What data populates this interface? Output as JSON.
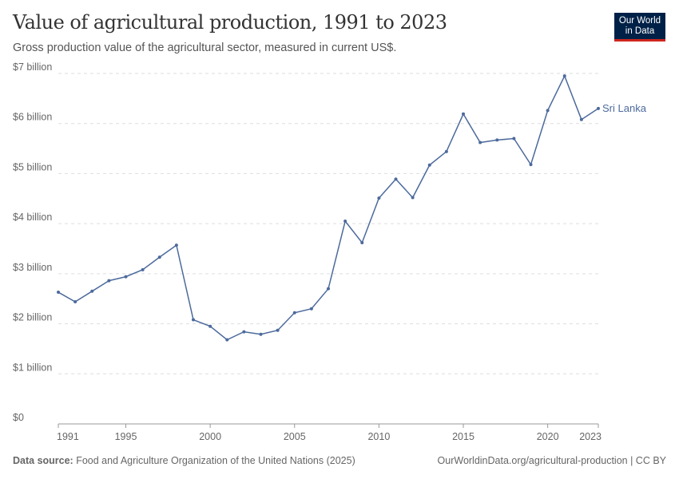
{
  "header": {
    "title": "Value of agricultural production, 1991 to 2023",
    "subtitle": "Gross production value of the agricultural sector, measured in current US$.",
    "logo": "Our World in Data"
  },
  "footer": {
    "source_label": "Data source:",
    "source": "Food and Agriculture Organization of the United Nations (2025)",
    "link": "OurWorldinData.org/agricultural-production | CC BY"
  },
  "colors": {
    "series": "#4c6a9c",
    "grid": "#dddddd"
  },
  "chart_data": {
    "type": "line",
    "title": "Value of agricultural production, 1991 to 2023",
    "x": [
      1991,
      1992,
      1993,
      1994,
      1995,
      1996,
      1997,
      1998,
      1999,
      2000,
      2001,
      2002,
      2003,
      2004,
      2005,
      2006,
      2007,
      2008,
      2009,
      2010,
      2011,
      2012,
      2013,
      2014,
      2015,
      2016,
      2017,
      2018,
      2019,
      2020,
      2021,
      2022,
      2023
    ],
    "series": [
      {
        "name": "Sri Lanka",
        "values": [
          2.63,
          2.44,
          2.65,
          2.86,
          2.94,
          3.08,
          3.33,
          3.57,
          2.08,
          1.95,
          1.68,
          1.84,
          1.79,
          1.87,
          2.22,
          2.3,
          2.7,
          4.05,
          3.62,
          4.51,
          4.89,
          4.52,
          5.17,
          5.44,
          6.19,
          5.62,
          5.67,
          5.7,
          5.18,
          6.26,
          6.95,
          6.08,
          6.3
        ]
      }
    ],
    "xlim": [
      1991,
      2023
    ],
    "ylim": [
      0,
      7
    ],
    "xticks": [
      1991,
      1995,
      2000,
      2005,
      2010,
      2015,
      2020,
      2023
    ],
    "yticks": [
      0,
      1,
      2,
      3,
      4,
      5,
      6,
      7
    ],
    "ytick_labels": [
      "$0",
      "$1 billion",
      "$2 billion",
      "$3 billion",
      "$4 billion",
      "$5 billion",
      "$6 billion",
      "$7 billion"
    ],
    "grid": "horizontal dashed",
    "legend": "inline-right-label"
  }
}
